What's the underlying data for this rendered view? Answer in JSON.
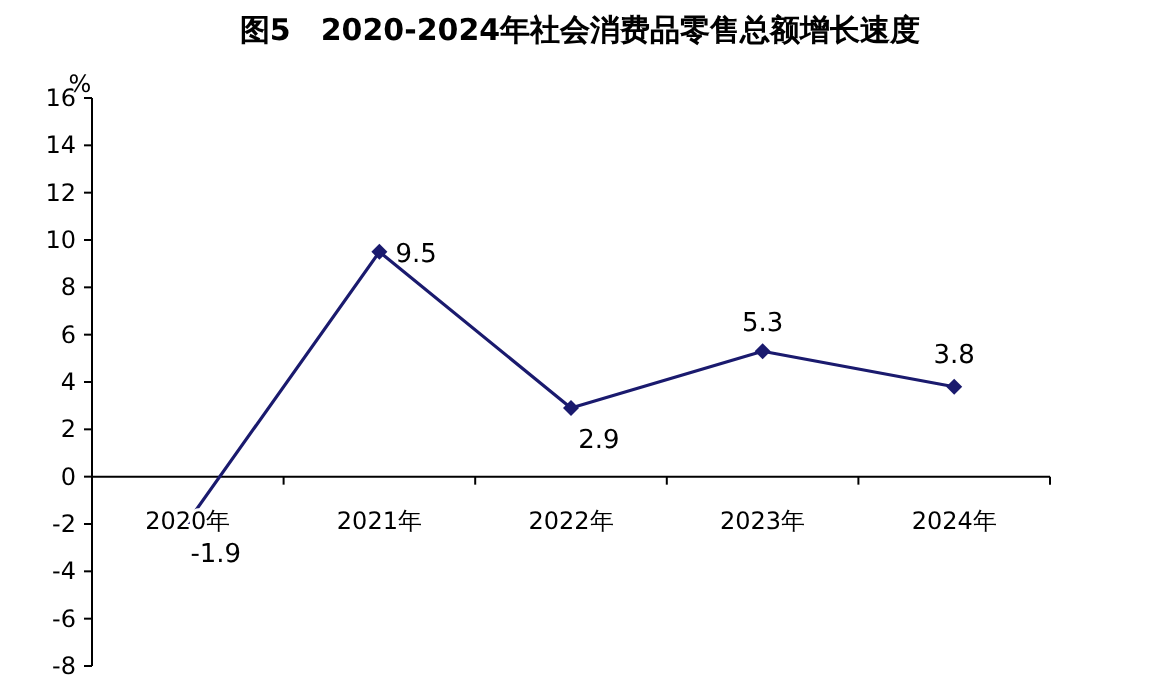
{
  "chart_data": {
    "type": "line",
    "title": "图5　2020-2024年社会消费品零售总额增长速度",
    "ylabel": "%",
    "categories": [
      "2020年",
      "2021年",
      "2022年",
      "2023年",
      "2024年"
    ],
    "series": [
      {
        "color": "#1a1a6e",
        "values": [
          -1.9,
          9.5,
          2.9,
          5.3,
          3.8
        ]
      }
    ],
    "ylim": [
      -8,
      16
    ],
    "yticks": [
      -8,
      -6,
      -4,
      -2,
      0,
      2,
      4,
      6,
      8,
      10,
      12,
      14,
      16
    ],
    "marker": "diamond",
    "line_style": "solid",
    "data_labels": true
  }
}
